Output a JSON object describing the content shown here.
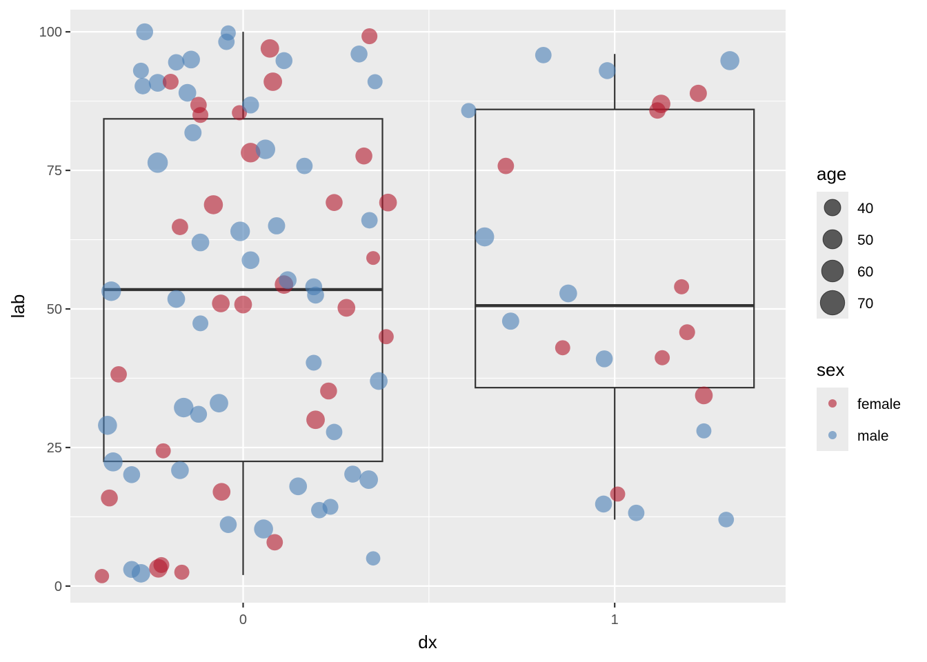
{
  "chart_data": {
    "type": "scatter",
    "subtype": "jittered points over boxplot",
    "title": "",
    "xlabel": "dx",
    "ylabel": "lab",
    "x_categories": [
      "0",
      "1"
    ],
    "x_range": [
      -0.465,
      1.46
    ],
    "y_range": [
      -3,
      104
    ],
    "y_ticks": [
      0,
      25,
      50,
      75,
      100
    ],
    "grid": true,
    "boxplots": [
      {
        "group": "0",
        "x": 0,
        "whisker_low": 2,
        "q1": 22.5,
        "median": 53.5,
        "q3": 84.3,
        "whisker_high": 100
      },
      {
        "group": "1",
        "x": 1,
        "whisker_low": 12,
        "q1": 35.8,
        "median": 50.6,
        "q3": 86,
        "whisker_high": 96
      }
    ],
    "colors": {
      "female": "#B2182B",
      "male": "#4A7EB5"
    },
    "legend": {
      "position": "right",
      "age_title": "age",
      "age_values": [
        40,
        50,
        60,
        70
      ],
      "sex_title": "sex",
      "sex_values": [
        "female",
        "male"
      ]
    },
    "points": [
      {
        "x": -0.265,
        "y": 100,
        "sex": "male",
        "age": 52
      },
      {
        "x": -0.04,
        "y": 99.8,
        "sex": "male",
        "age": 45
      },
      {
        "x": -0.045,
        "y": 98.2,
        "sex": "male",
        "age": 50
      },
      {
        "x": 0.072,
        "y": 97,
        "sex": "female",
        "age": 58
      },
      {
        "x": 0.34,
        "y": 99.2,
        "sex": "female",
        "age": 48
      },
      {
        "x": 0.312,
        "y": 96,
        "sex": "male",
        "age": 52
      },
      {
        "x": -0.275,
        "y": 93,
        "sex": "male",
        "age": 48
      },
      {
        "x": -0.18,
        "y": 94.5,
        "sex": "male",
        "age": 50
      },
      {
        "x": -0.14,
        "y": 95,
        "sex": "male",
        "age": 55
      },
      {
        "x": 0.11,
        "y": 94.8,
        "sex": "male",
        "age": 52
      },
      {
        "x": -0.27,
        "y": 90.2,
        "sex": "male",
        "age": 50
      },
      {
        "x": -0.23,
        "y": 90.8,
        "sex": "male",
        "age": 55
      },
      {
        "x": -0.195,
        "y": 91,
        "sex": "female",
        "age": 48
      },
      {
        "x": -0.15,
        "y": 89,
        "sex": "male",
        "age": 55
      },
      {
        "x": 0.08,
        "y": 91,
        "sex": "female",
        "age": 58
      },
      {
        "x": 0.355,
        "y": 91,
        "sex": "male",
        "age": 45
      },
      {
        "x": -0.12,
        "y": 86.8,
        "sex": "female",
        "age": 50
      },
      {
        "x": -0.115,
        "y": 85,
        "sex": "female",
        "age": 48
      },
      {
        "x": -0.01,
        "y": 85.4,
        "sex": "female",
        "age": 45
      },
      {
        "x": 0.02,
        "y": 86.8,
        "sex": "male",
        "age": 52
      },
      {
        "x": -0.135,
        "y": 81.8,
        "sex": "male",
        "age": 53
      },
      {
        "x": -0.23,
        "y": 76.4,
        "sex": "male",
        "age": 65
      },
      {
        "x": 0.02,
        "y": 78.2,
        "sex": "female",
        "age": 62
      },
      {
        "x": 0.06,
        "y": 78.8,
        "sex": "male",
        "age": 62
      },
      {
        "x": 0.165,
        "y": 75.8,
        "sex": "male",
        "age": 50
      },
      {
        "x": 0.325,
        "y": 77.6,
        "sex": "female",
        "age": 52
      },
      {
        "x": -0.08,
        "y": 68.8,
        "sex": "female",
        "age": 60
      },
      {
        "x": 0.245,
        "y": 69.2,
        "sex": "female",
        "age": 52
      },
      {
        "x": 0.39,
        "y": 69.2,
        "sex": "female",
        "age": 55
      },
      {
        "x": -0.17,
        "y": 64.8,
        "sex": "female",
        "age": 50
      },
      {
        "x": 0.09,
        "y": 65,
        "sex": "male",
        "age": 53
      },
      {
        "x": 0.34,
        "y": 66,
        "sex": "male",
        "age": 50
      },
      {
        "x": -0.115,
        "y": 62,
        "sex": "male",
        "age": 55
      },
      {
        "x": -0.008,
        "y": 64,
        "sex": "male",
        "age": 62
      },
      {
        "x": 0.02,
        "y": 58.8,
        "sex": "male",
        "age": 55
      },
      {
        "x": 0.35,
        "y": 59.2,
        "sex": "female",
        "age": 40
      },
      {
        "x": -0.355,
        "y": 53.2,
        "sex": "male",
        "age": 62
      },
      {
        "x": -0.18,
        "y": 51.8,
        "sex": "male",
        "age": 55
      },
      {
        "x": 0.11,
        "y": 54.4,
        "sex": "female",
        "age": 58
      },
      {
        "x": 0.12,
        "y": 55.2,
        "sex": "male",
        "age": 55
      },
      {
        "x": 0.19,
        "y": 54,
        "sex": "male",
        "age": 52
      },
      {
        "x": 0.195,
        "y": 52.5,
        "sex": "male",
        "age": 52
      },
      {
        "x": -0.06,
        "y": 51,
        "sex": "female",
        "age": 55
      },
      {
        "x": 0.0,
        "y": 50.8,
        "sex": "female",
        "age": 55
      },
      {
        "x": 0.278,
        "y": 50.2,
        "sex": "female",
        "age": 55
      },
      {
        "x": -0.115,
        "y": 47.4,
        "sex": "male",
        "age": 48
      },
      {
        "x": 0.385,
        "y": 45,
        "sex": "female",
        "age": 45
      },
      {
        "x": 0.19,
        "y": 40.3,
        "sex": "male",
        "age": 48
      },
      {
        "x": 0.365,
        "y": 37,
        "sex": "male",
        "age": 55
      },
      {
        "x": -0.335,
        "y": 38.2,
        "sex": "female",
        "age": 50
      },
      {
        "x": -0.065,
        "y": 33,
        "sex": "male",
        "age": 58
      },
      {
        "x": -0.16,
        "y": 32.2,
        "sex": "male",
        "age": 62
      },
      {
        "x": -0.12,
        "y": 31,
        "sex": "male",
        "age": 52
      },
      {
        "x": 0.23,
        "y": 35.2,
        "sex": "female",
        "age": 52
      },
      {
        "x": 0.195,
        "y": 30,
        "sex": "female",
        "age": 58
      },
      {
        "x": -0.365,
        "y": 29,
        "sex": "male",
        "age": 60
      },
      {
        "x": 0.245,
        "y": 27.8,
        "sex": "male",
        "age": 50
      },
      {
        "x": -0.215,
        "y": 24.4,
        "sex": "female",
        "age": 45
      },
      {
        "x": -0.35,
        "y": 22.4,
        "sex": "male",
        "age": 60
      },
      {
        "x": -0.3,
        "y": 20.1,
        "sex": "male",
        "age": 52
      },
      {
        "x": -0.17,
        "y": 20.9,
        "sex": "male",
        "age": 55
      },
      {
        "x": 0.295,
        "y": 20.2,
        "sex": "male",
        "age": 52
      },
      {
        "x": 0.338,
        "y": 19.2,
        "sex": "male",
        "age": 58
      },
      {
        "x": 0.148,
        "y": 18,
        "sex": "male",
        "age": 55
      },
      {
        "x": -0.058,
        "y": 17,
        "sex": "female",
        "age": 55
      },
      {
        "x": -0.36,
        "y": 15.9,
        "sex": "female",
        "age": 52
      },
      {
        "x": 0.205,
        "y": 13.7,
        "sex": "male",
        "age": 50
      },
      {
        "x": 0.235,
        "y": 14.3,
        "sex": "male",
        "age": 48
      },
      {
        "x": -0.04,
        "y": 11.1,
        "sex": "male",
        "age": 52
      },
      {
        "x": 0.055,
        "y": 10.3,
        "sex": "male",
        "age": 60
      },
      {
        "x": 0.085,
        "y": 7.9,
        "sex": "female",
        "age": 50
      },
      {
        "x": 0.35,
        "y": 5,
        "sex": "male",
        "age": 42
      },
      {
        "x": -0.3,
        "y": 3,
        "sex": "male",
        "age": 52
      },
      {
        "x": -0.275,
        "y": 2.3,
        "sex": "male",
        "age": 58
      },
      {
        "x": -0.228,
        "y": 3.2,
        "sex": "female",
        "age": 58
      },
      {
        "x": -0.22,
        "y": 3.8,
        "sex": "female",
        "age": 48
      },
      {
        "x": -0.165,
        "y": 2.5,
        "sex": "female",
        "age": 45
      },
      {
        "x": -0.38,
        "y": 1.8,
        "sex": "female",
        "age": 42
      },
      {
        "x": 0.607,
        "y": 85.8,
        "sex": "male",
        "age": 45
      },
      {
        "x": 0.808,
        "y": 95.8,
        "sex": "male",
        "age": 50
      },
      {
        "x": 0.98,
        "y": 93,
        "sex": "male",
        "age": 52
      },
      {
        "x": 1.31,
        "y": 94.8,
        "sex": "male",
        "age": 60
      },
      {
        "x": 1.125,
        "y": 87,
        "sex": "female",
        "age": 58
      },
      {
        "x": 1.115,
        "y": 85.8,
        "sex": "female",
        "age": 50
      },
      {
        "x": 1.225,
        "y": 88.9,
        "sex": "female",
        "age": 53
      },
      {
        "x": 0.707,
        "y": 75.8,
        "sex": "female",
        "age": 50
      },
      {
        "x": 0.65,
        "y": 63,
        "sex": "male",
        "age": 60
      },
      {
        "x": 0.875,
        "y": 52.8,
        "sex": "male",
        "age": 55
      },
      {
        "x": 1.18,
        "y": 54,
        "sex": "female",
        "age": 45
      },
      {
        "x": 0.72,
        "y": 47.8,
        "sex": "male",
        "age": 53
      },
      {
        "x": 1.195,
        "y": 45.8,
        "sex": "female",
        "age": 48
      },
      {
        "x": 0.86,
        "y": 43,
        "sex": "female",
        "age": 45
      },
      {
        "x": 0.972,
        "y": 41,
        "sex": "male",
        "age": 52
      },
      {
        "x": 1.128,
        "y": 41.2,
        "sex": "female",
        "age": 45
      },
      {
        "x": 1.24,
        "y": 34.4,
        "sex": "female",
        "age": 55
      },
      {
        "x": 1.24,
        "y": 28,
        "sex": "male",
        "age": 45
      },
      {
        "x": 1.008,
        "y": 16.6,
        "sex": "female",
        "age": 45
      },
      {
        "x": 0.97,
        "y": 14.8,
        "sex": "male",
        "age": 52
      },
      {
        "x": 1.058,
        "y": 13.2,
        "sex": "male",
        "age": 50
      },
      {
        "x": 1.3,
        "y": 12,
        "sex": "male",
        "age": 47
      }
    ]
  }
}
